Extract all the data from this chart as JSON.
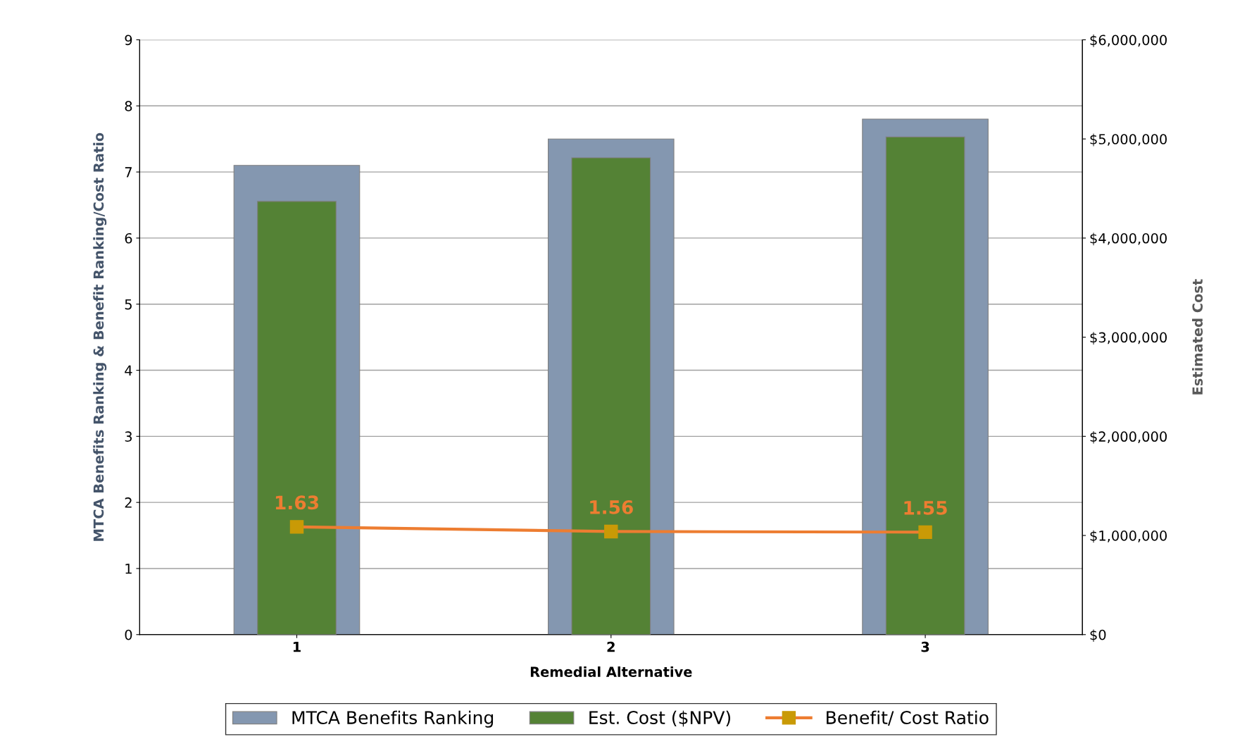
{
  "chart_data": {
    "type": "bar",
    "xlabel": "Remedial Alternative",
    "ylabel": "MTCA Benefits Ranking & Benefit Ranking/Cost Ratio",
    "y2label": "Estimated Cost",
    "categories": [
      "1",
      "2",
      "3"
    ],
    "series": [
      {
        "name": "MTCA Benefits Ranking",
        "color": "#8497b0",
        "values": [
          7.1,
          7.5,
          7.8
        ]
      },
      {
        "name": "Est. Cost ($NPV)",
        "color": "#548235",
        "values": [
          4370000,
          4810000,
          5020000
        ],
        "axis": "y2"
      },
      {
        "name": "Benefit/ Cost Ratio",
        "type": "line",
        "color": "#ed7d31",
        "values": [
          1.63,
          1.56,
          1.55
        ],
        "value_labels": [
          "1.63",
          "1.56",
          "1.55"
        ],
        "marker": "square"
      }
    ],
    "ylim": [
      0,
      9
    ],
    "yticks": [
      0,
      1,
      2,
      3,
      4,
      5,
      6,
      7,
      8,
      9
    ],
    "y2lim": [
      0,
      6000000
    ],
    "y2ticks": [
      {
        "value": 0,
        "label": "$0"
      },
      {
        "value": 1000000,
        "label": "$1,000,000"
      },
      {
        "value": 2000000,
        "label": "$2,000,000"
      },
      {
        "value": 3000000,
        "label": "$3,000,000"
      },
      {
        "value": 4000000,
        "label": "$4,000,000"
      },
      {
        "value": 5000000,
        "label": "$5,000,000"
      },
      {
        "value": 6000000,
        "label": "$6,000,000"
      }
    ],
    "grid": "y",
    "legend": "bottom"
  }
}
